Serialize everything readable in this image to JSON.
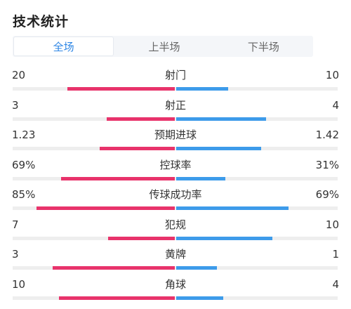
{
  "title": "技术统计",
  "tabs": [
    {
      "label": "全场",
      "active": true
    },
    {
      "label": "上半场",
      "active": false
    },
    {
      "label": "下半场",
      "active": false
    }
  ],
  "colors": {
    "home": "#e8336b",
    "away": "#3d9bea",
    "accent": "#2d86e5",
    "track": "#eeeeee"
  },
  "stats": [
    {
      "label": "射门",
      "left": "20",
      "right": "10",
      "left_ratio": 0.66,
      "right_ratio": 0.32
    },
    {
      "label": "射正",
      "left": "3",
      "right": "4",
      "left_ratio": 0.42,
      "right_ratio": 0.55
    },
    {
      "label": "预期进球",
      "left": "1.23",
      "right": "1.42",
      "left_ratio": 0.46,
      "right_ratio": 0.52
    },
    {
      "label": "控球率",
      "left": "69%",
      "right": "31%",
      "left_ratio": 0.7,
      "right_ratio": 0.3
    },
    {
      "label": "传球成功率",
      "left": "85%",
      "right": "69%",
      "left_ratio": 0.85,
      "right_ratio": 0.69
    },
    {
      "label": "犯规",
      "left": "7",
      "right": "10",
      "left_ratio": 0.41,
      "right_ratio": 0.59
    },
    {
      "label": "黄牌",
      "left": "3",
      "right": "1",
      "left_ratio": 0.75,
      "right_ratio": 0.25
    },
    {
      "label": "角球",
      "left": "10",
      "right": "4",
      "left_ratio": 0.71,
      "right_ratio": 0.29
    }
  ]
}
